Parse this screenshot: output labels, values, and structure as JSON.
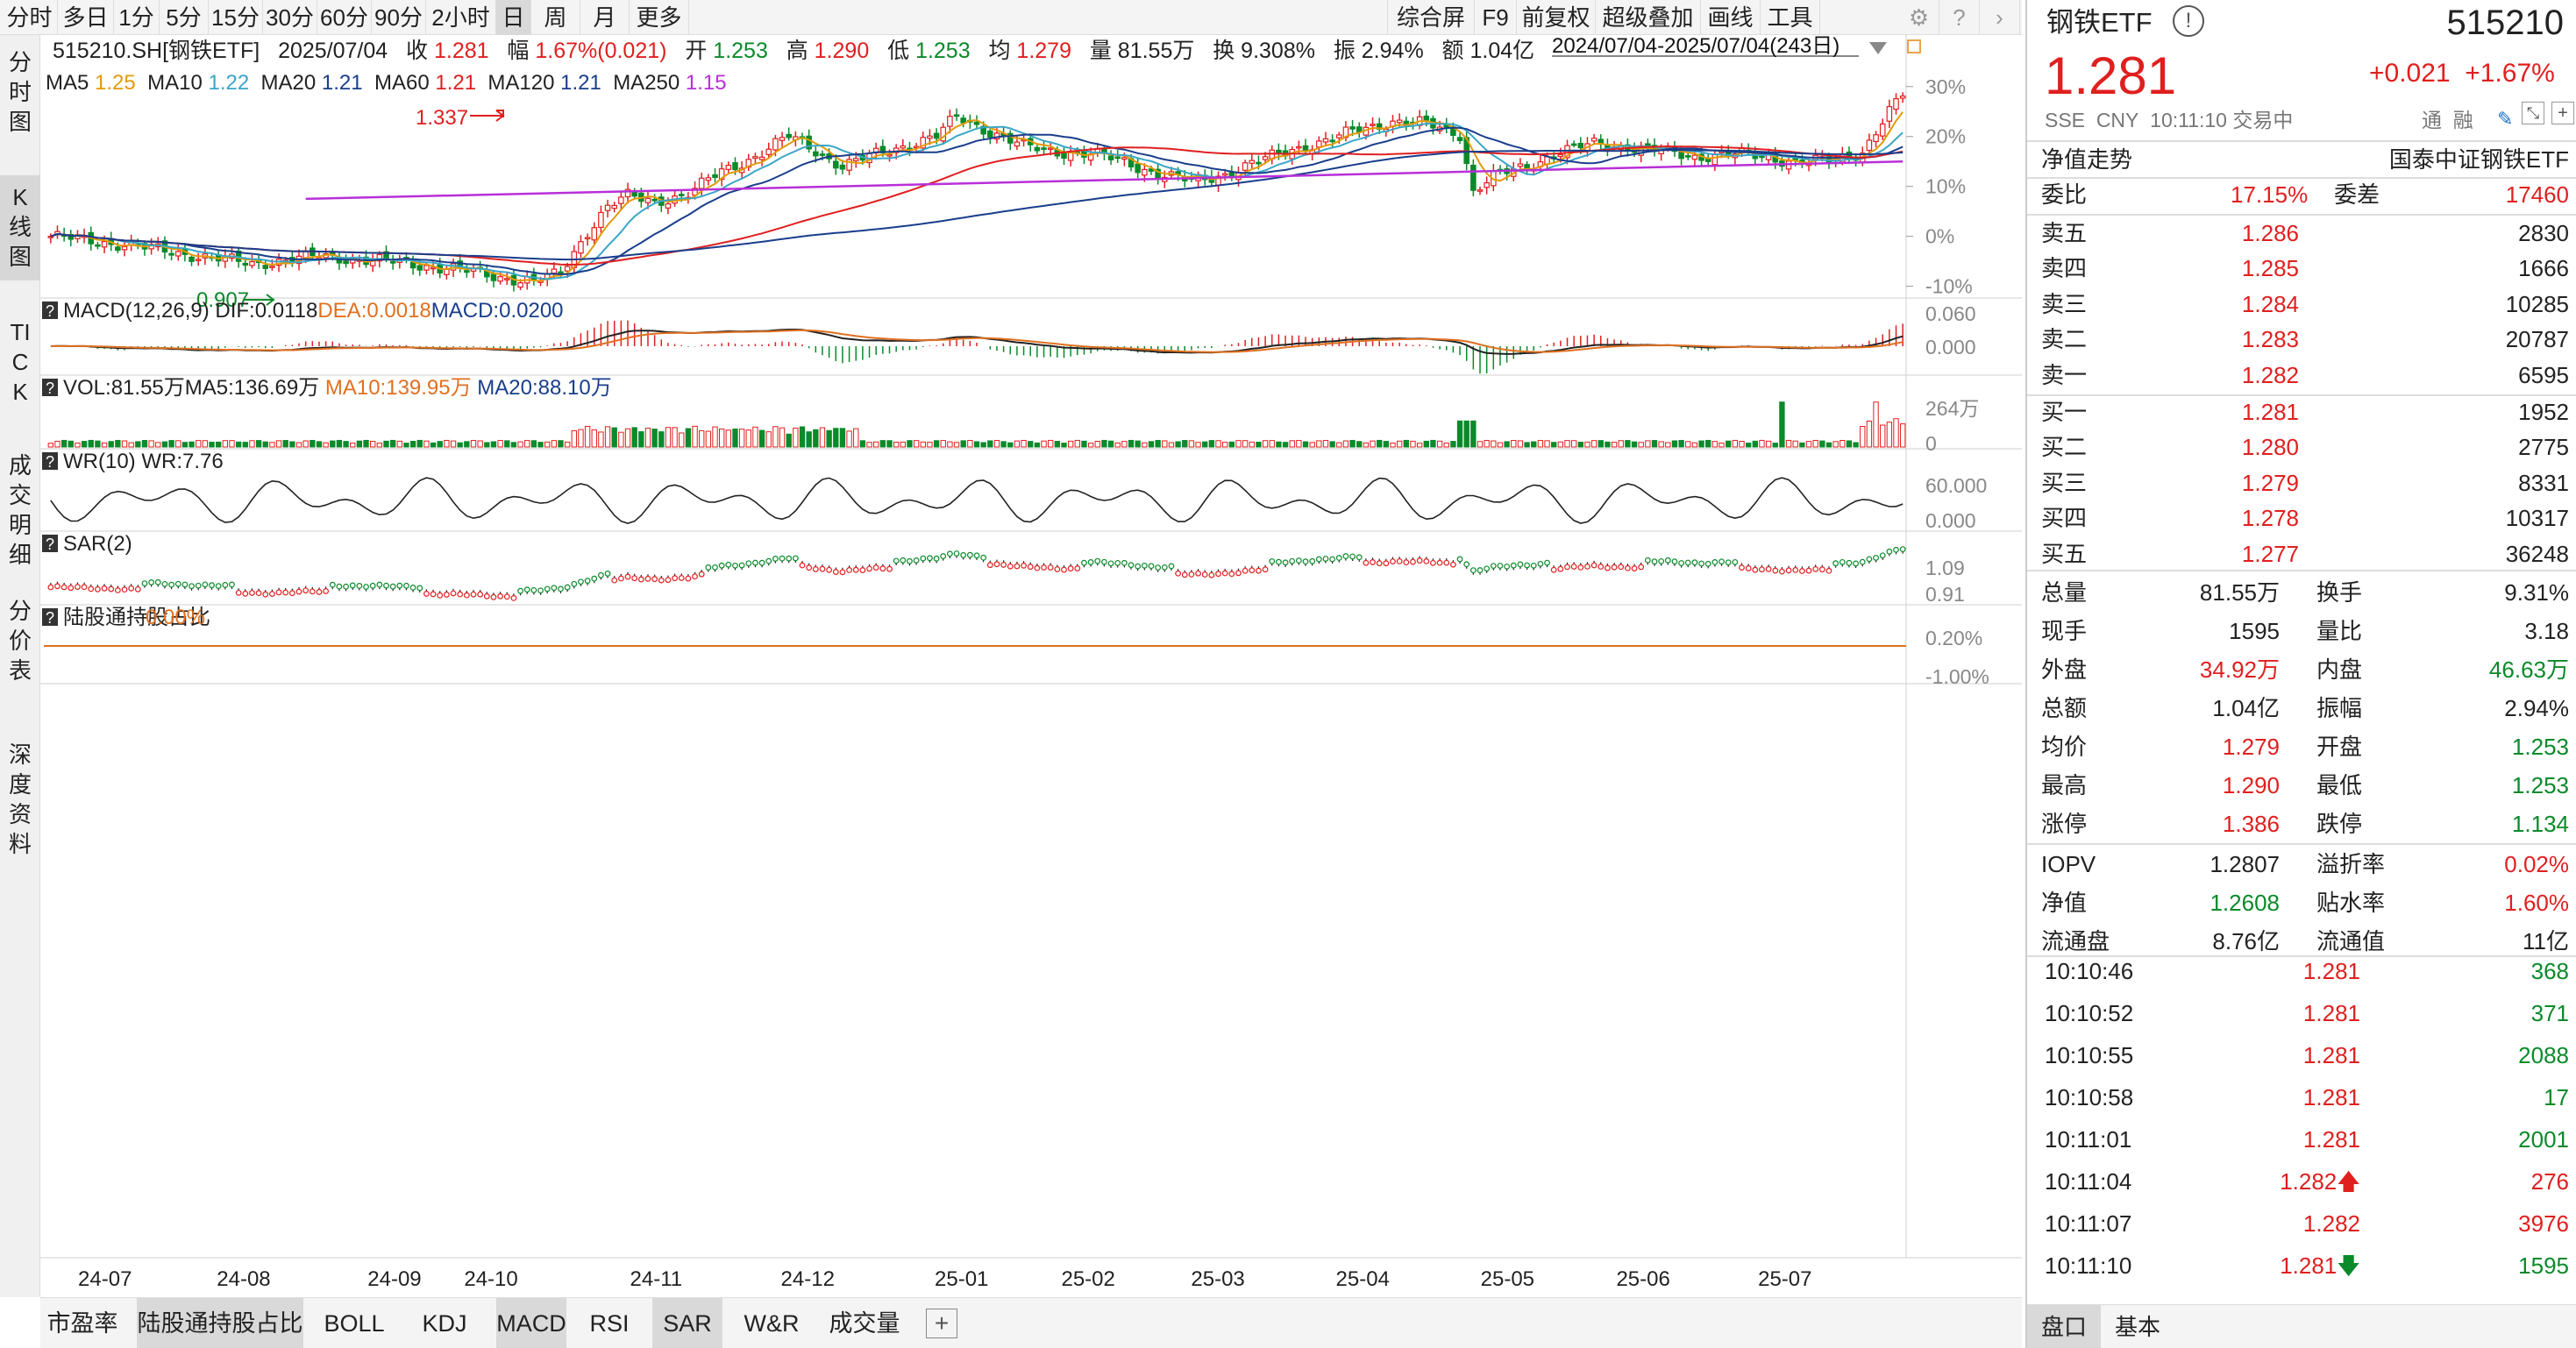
{
  "toolbar": {
    "periods": [
      "分时",
      "多日",
      "1分",
      "5分",
      "15分",
      "30分",
      "60分",
      "90分",
      "2小时",
      "日",
      "周",
      "月",
      "更多"
    ],
    "active_period": "日",
    "tools": [
      "综合屏",
      "F9",
      "前复权",
      "超级叠加",
      "画线",
      "工具"
    ]
  },
  "info": {
    "code": "515210.SH[钢铁ETF]",
    "date": "2025/07/04",
    "close_label": "收",
    "close": "1.281",
    "change_label": "幅",
    "change": "1.67%(0.021)",
    "open_label": "开",
    "open": "1.253",
    "high_label": "高",
    "high": "1.290",
    "low_label": "低",
    "low": "1.253",
    "avg_label": "均",
    "avg": "1.279",
    "vol_label": "量",
    "vol": "81.55万",
    "turnover_label": "换",
    "turnover": "9.308%",
    "amp_label": "振",
    "amp": "2.94%",
    "amount_label": "额",
    "amount": "1.04亿"
  },
  "ma": [
    {
      "label": "MA5",
      "value": "1.25",
      "color": "#e39a0a"
    },
    {
      "label": "MA10",
      "value": "1.22",
      "color": "#3aa6c7"
    },
    {
      "label": "MA20",
      "value": "1.21",
      "color": "#1a3e8c"
    },
    {
      "label": "MA60",
      "value": "1.21",
      "color": "#e01f1f"
    },
    {
      "label": "MA120",
      "value": "1.21",
      "color": "#1a3e8c"
    },
    {
      "label": "MA250",
      "value": "1.15",
      "color": "#b92fd8"
    }
  ],
  "range_text": "2024/07/04-2025/07/04(243日)",
  "left_tabs": [
    "分时图",
    "K线图",
    "TICK",
    "成交明细",
    "分价表",
    "深度资料"
  ],
  "bottom_tabs": [
    "市盈率",
    "陆股通持股占比",
    "BOLL",
    "KDJ",
    "MACD",
    "RSI",
    "SAR",
    "W&R",
    "成交量"
  ],
  "active_bottom_tabs": [
    "陆股通持股占比",
    "MACD",
    "SAR"
  ],
  "chart_data": {
    "type": "candlestick",
    "x_tick_labels": [
      "24-07",
      "24-08",
      "24-09",
      "24-10",
      "24-11",
      "24-12",
      "25-01",
      "25-02",
      "25-03",
      "25-04",
      "25-05",
      "25-06",
      "25-07"
    ],
    "price_axis_labels": [
      "30%",
      "20%",
      "10%",
      "0%",
      "-10%"
    ],
    "annotations": {
      "high": "1.337",
      "low": "0.907"
    },
    "close_path": [
      [
        0,
        1.0
      ],
      [
        10,
        0.985
      ],
      [
        20,
        0.965
      ],
      [
        30,
        0.945
      ],
      [
        40,
        0.96
      ],
      [
        50,
        0.95
      ],
      [
        60,
        0.935
      ],
      [
        66,
        0.92
      ],
      [
        72,
        0.91
      ],
      [
        76,
        0.925
      ],
      [
        80,
        1.01
      ],
      [
        83,
        1.06
      ],
      [
        86,
        1.08
      ],
      [
        90,
        1.07
      ],
      [
        95,
        1.085
      ],
      [
        100,
        1.13
      ],
      [
        105,
        1.16
      ],
      [
        110,
        1.2
      ],
      [
        113,
        1.18
      ],
      [
        118,
        1.14
      ],
      [
        122,
        1.16
      ],
      [
        128,
        1.185
      ],
      [
        132,
        1.2
      ],
      [
        135,
        1.24
      ],
      [
        140,
        1.21
      ],
      [
        145,
        1.18
      ],
      [
        150,
        1.17
      ],
      [
        155,
        1.165
      ],
      [
        160,
        1.15
      ],
      [
        165,
        1.125
      ],
      [
        170,
        1.11
      ],
      [
        175,
        1.125
      ],
      [
        180,
        1.15
      ],
      [
        185,
        1.175
      ],
      [
        190,
        1.19
      ],
      [
        195,
        1.215
      ],
      [
        200,
        1.23
      ],
      [
        205,
        1.225
      ],
      [
        210,
        1.205
      ],
      [
        212,
        1.09
      ],
      [
        215,
        1.12
      ],
      [
        220,
        1.14
      ],
      [
        225,
        1.17
      ],
      [
        230,
        1.185
      ],
      [
        235,
        1.18
      ],
      [
        240,
        1.17
      ],
      [
        245,
        1.16
      ],
      [
        250,
        1.165
      ],
      [
        255,
        1.16
      ],
      [
        260,
        1.15
      ],
      [
        265,
        1.15
      ],
      [
        270,
        1.17
      ],
      [
        274,
        1.25
      ],
      [
        276,
        1.281
      ]
    ],
    "ma250_path": [
      [
        0,
        0.96
      ],
      [
        276,
        1.15
      ]
    ],
    "macd": {
      "DIF": "0.0118",
      "DEA": "0.0018",
      "MACD": "0.0200",
      "axis_labels": [
        "0.060",
        "0.000"
      ]
    },
    "vol": {
      "VOL": "81.55万",
      "MA5": "136.69万",
      "MA10": "139.95万",
      "MA20": "88.10万",
      "axis_labels": [
        "264万",
        "0"
      ]
    },
    "wr": {
      "label": "WR(10)",
      "value": "7.76",
      "axis_labels": [
        "60.000",
        "0.000"
      ]
    },
    "sar": {
      "label": "SAR(2)",
      "axis_labels": [
        "1.09",
        "0.91"
      ]
    },
    "hk": {
      "label": "陆股通持股占比",
      "value": "0.00%",
      "axis_labels": [
        "0.20%",
        "-1.00%"
      ]
    }
  },
  "quote": {
    "name": "钢铁ETF",
    "code": "515210",
    "price": "1.281",
    "change": "+0.021",
    "change_pct": "+1.67%",
    "exchange": "SSE",
    "currency": "CNY",
    "time": "10:11:10",
    "status": "交易中",
    "tags": [
      "通",
      "融"
    ],
    "nav_trend_label": "净值走势",
    "index_name": "国泰中证钢铁ETF",
    "weibi_label": "委比",
    "weibi": "17.15%",
    "weicha_label": "委差",
    "weicha": "17460",
    "asks": [
      {
        "label": "卖五",
        "price": "1.286",
        "vol": "2830"
      },
      {
        "label": "卖四",
        "price": "1.285",
        "vol": "1666"
      },
      {
        "label": "卖三",
        "price": "1.284",
        "vol": "10285"
      },
      {
        "label": "卖二",
        "price": "1.283",
        "vol": "20787"
      },
      {
        "label": "卖一",
        "price": "1.282",
        "vol": "6595"
      }
    ],
    "bids": [
      {
        "label": "买一",
        "price": "1.281",
        "vol": "1952"
      },
      {
        "label": "买二",
        "price": "1.280",
        "vol": "2775"
      },
      {
        "label": "买三",
        "price": "1.279",
        "vol": "8331"
      },
      {
        "label": "买四",
        "price": "1.278",
        "vol": "10317"
      },
      {
        "label": "买五",
        "price": "1.277",
        "vol": "36248"
      }
    ],
    "stats": [
      {
        "l1": "总量",
        "v1": "81.55万",
        "c1": "#222",
        "l2": "换手",
        "v2": "9.31%",
        "c2": "#222"
      },
      {
        "l1": "现手",
        "v1": "1595",
        "c1": "#222",
        "l2": "量比",
        "v2": "3.18",
        "c2": "#222"
      },
      {
        "l1": "外盘",
        "v1": "34.92万",
        "c1": "#e01f1f",
        "l2": "内盘",
        "v2": "46.63万",
        "c2": "#0a8a2a"
      },
      {
        "l1": "总额",
        "v1": "1.04亿",
        "c1": "#222",
        "l2": "振幅",
        "v2": "2.94%",
        "c2": "#222"
      },
      {
        "l1": "均价",
        "v1": "1.279",
        "c1": "#e01f1f",
        "l2": "开盘",
        "v2": "1.253",
        "c2": "#0a8a2a"
      },
      {
        "l1": "最高",
        "v1": "1.290",
        "c1": "#e01f1f",
        "l2": "最低",
        "v2": "1.253",
        "c2": "#0a8a2a"
      },
      {
        "l1": "涨停",
        "v1": "1.386",
        "c1": "#e01f1f",
        "l2": "跌停",
        "v2": "1.134",
        "c2": "#0a8a2a"
      }
    ],
    "etf_stats": [
      {
        "l1": "IOPV",
        "v1": "1.2807",
        "c1": "#222",
        "l2": "溢折率",
        "v2": "0.02%",
        "c2": "#e01f1f"
      },
      {
        "l1": "净值",
        "v1": "1.2608",
        "c1": "#0a8a2a",
        "l2": "贴水率",
        "v2": "1.60%",
        "c2": "#e01f1f"
      },
      {
        "l1": "流通盘",
        "v1": "8.76亿",
        "c1": "#222",
        "l2": "流通值",
        "v2": "11亿",
        "c2": "#222"
      }
    ],
    "ticks": [
      {
        "time": "10:10:46",
        "price": "1.281",
        "vol": "368",
        "dir": "",
        "vcolor": "#0a8a2a"
      },
      {
        "time": "10:10:52",
        "price": "1.281",
        "vol": "371",
        "dir": "",
        "vcolor": "#0a8a2a"
      },
      {
        "time": "10:10:55",
        "price": "1.281",
        "vol": "2088",
        "dir": "",
        "vcolor": "#0a8a2a"
      },
      {
        "time": "10:10:58",
        "price": "1.281",
        "vol": "17",
        "dir": "",
        "vcolor": "#0a8a2a"
      },
      {
        "time": "10:11:01",
        "price": "1.281",
        "vol": "2001",
        "dir": "",
        "vcolor": "#0a8a2a"
      },
      {
        "time": "10:11:04",
        "price": "1.282",
        "vol": "276",
        "dir": "up",
        "vcolor": "#e01f1f"
      },
      {
        "time": "10:11:07",
        "price": "1.282",
        "vol": "3976",
        "dir": "",
        "vcolor": "#e01f1f"
      },
      {
        "time": "10:11:10",
        "price": "1.281",
        "vol": "1595",
        "dir": "down",
        "vcolor": "#0a8a2a"
      }
    ],
    "bottom_tabs": [
      "盘口",
      "基本"
    ]
  }
}
